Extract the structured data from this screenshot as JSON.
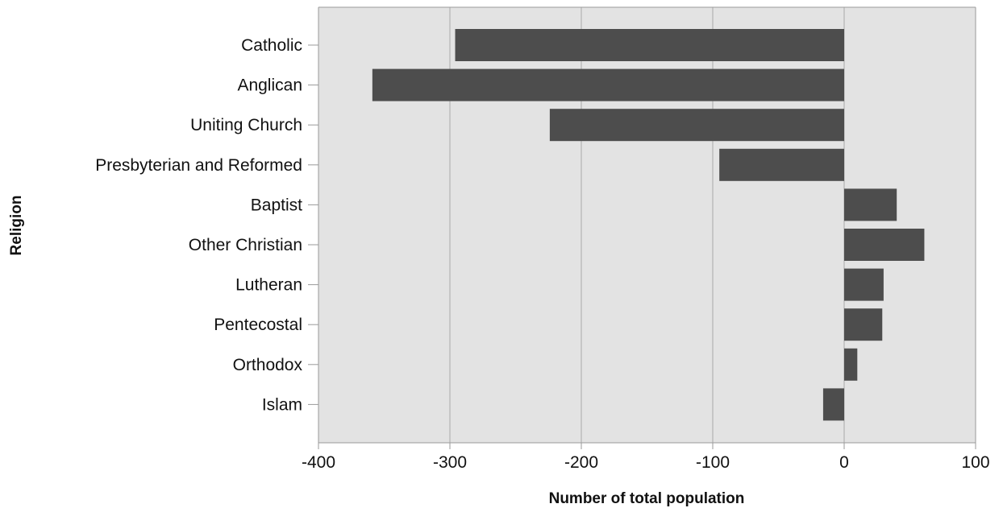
{
  "chart_data": {
    "type": "bar",
    "orientation": "horizontal",
    "categories": [
      "Catholic",
      "Anglican",
      "Uniting Church",
      "Presbyterian and Reformed",
      "Baptist",
      "Other Christian",
      "Lutheran",
      "Pentecostal",
      "Orthodox",
      "Islam"
    ],
    "values": [
      -296,
      -359,
      -224,
      -95,
      40,
      61,
      30,
      29,
      10,
      -16
    ],
    "xlabel": "Number of total population",
    "ylabel": "Religion",
    "xlim": [
      -400,
      100
    ],
    "xticks": [
      "-400",
      "-300",
      "-200",
      "-100",
      "0",
      "100"
    ],
    "grid": true,
    "colors": {
      "bar": "#4d4d4d",
      "plot_background": "#e3e3e3",
      "gridline": "#a8a8a8"
    }
  }
}
